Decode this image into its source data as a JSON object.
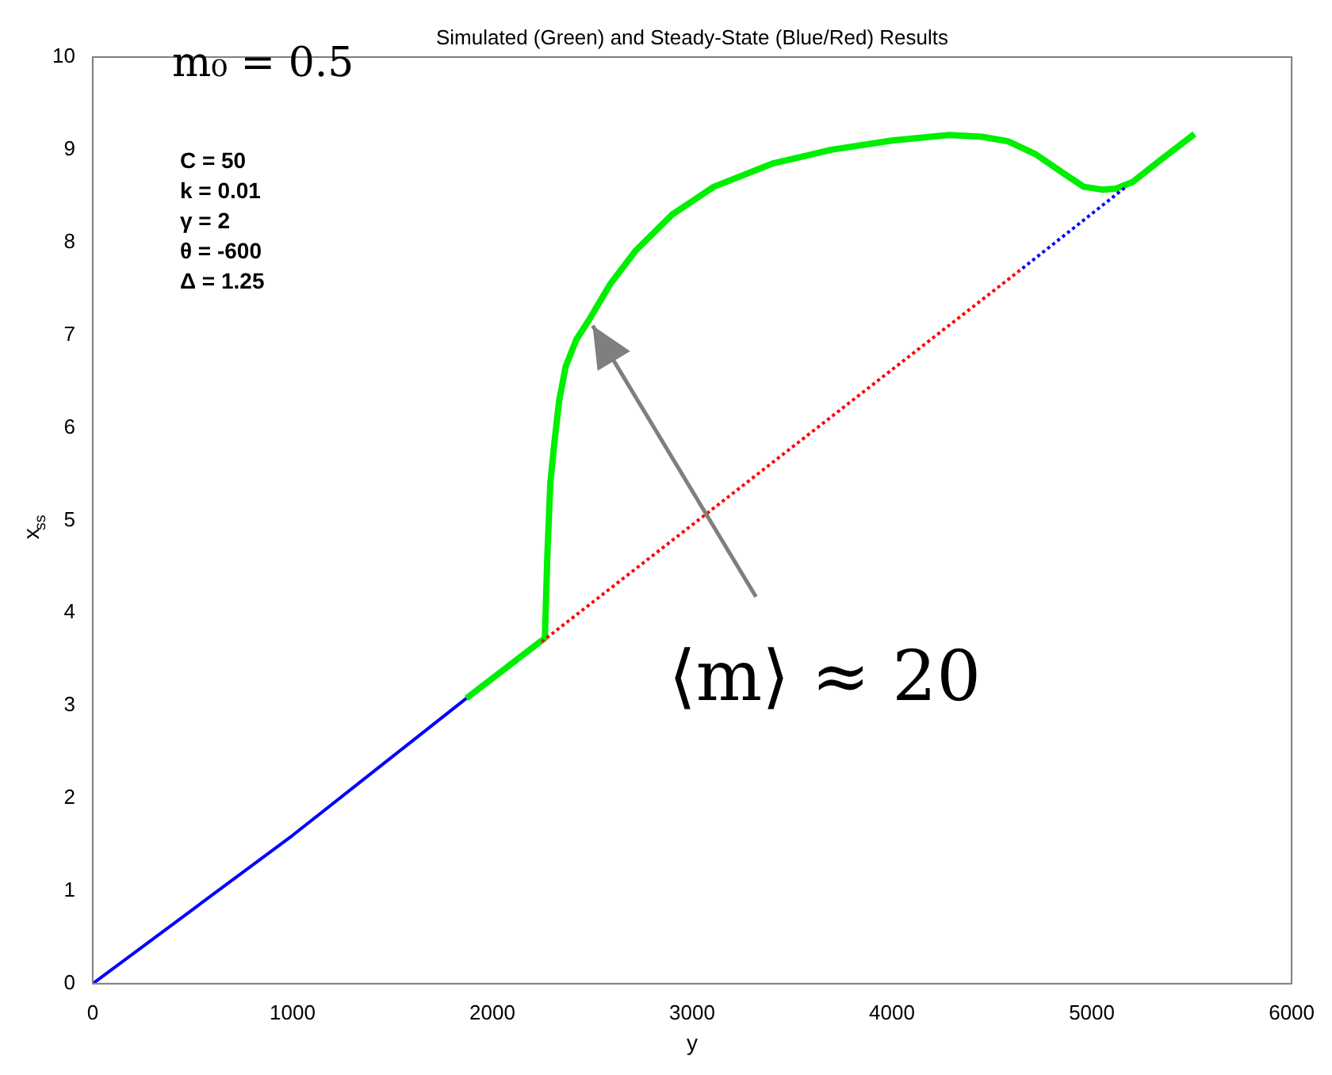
{
  "chart_data": {
    "type": "line",
    "title": "Simulated (Green) and Steady-State (Blue/Red) Results",
    "xlabel": "y",
    "ylabel": "x$_{ss}$",
    "xlim": [
      0,
      6000
    ],
    "xticks": [
      0,
      1000,
      2000,
      3000,
      4000,
      5000,
      6000
    ],
    "ylim": [
      0,
      10
    ],
    "yticks": [
      0,
      1,
      2,
      3,
      4,
      5,
      6,
      7,
      8,
      9,
      10
    ],
    "grid": false,
    "legend": false,
    "marker": "none",
    "series": [
      {
        "color": "#0000ff",
        "line_style": "solid",
        "x": [
          0,
          500,
          1000,
          1500,
          1870
        ],
        "values": [
          0,
          0.8,
          1.6,
          2.45,
          3.08
        ]
      },
      {
        "color": "#ff0000",
        "line_style": "dotted",
        "x": [
          2247,
          4653
        ],
        "values": [
          3.69,
          7.72
        ]
      },
      {
        "color": "#0000ff",
        "line_style": "dotted",
        "x": [
          4653,
          5171
        ],
        "values": [
          7.72,
          8.6
        ]
      },
      {
        "color": "#00ee00",
        "line_style": "solid",
        "x": [
          1870,
          2263,
          2275,
          2290,
          2311,
          2335,
          2367,
          2420,
          2486,
          2590,
          2717,
          2900,
          3108,
          3400,
          3697,
          4000,
          4287,
          4450,
          4582,
          4720,
          4876,
          4960,
          5052,
          5120,
          5203,
          5350,
          5514
        ],
        "values": [
          3.08,
          3.73,
          4.6,
          5.4,
          5.85,
          6.3,
          6.66,
          6.95,
          7.17,
          7.55,
          7.91,
          8.3,
          8.6,
          8.85,
          9.0,
          9.1,
          9.16,
          9.14,
          9.09,
          8.95,
          8.72,
          8.6,
          8.57,
          8.58,
          8.65,
          8.9,
          9.17
        ]
      }
    ],
    "annotations": [
      "m₀ = 0.5",
      "C = 50",
      "k = 0.01",
      "γ = 2",
      "θ = -600",
      "Δ = 1.25",
      {
        "text": "⟨m⟩ ≈ 20",
        "x": 2486,
        "y": 7.17
      }
    ]
  }
}
